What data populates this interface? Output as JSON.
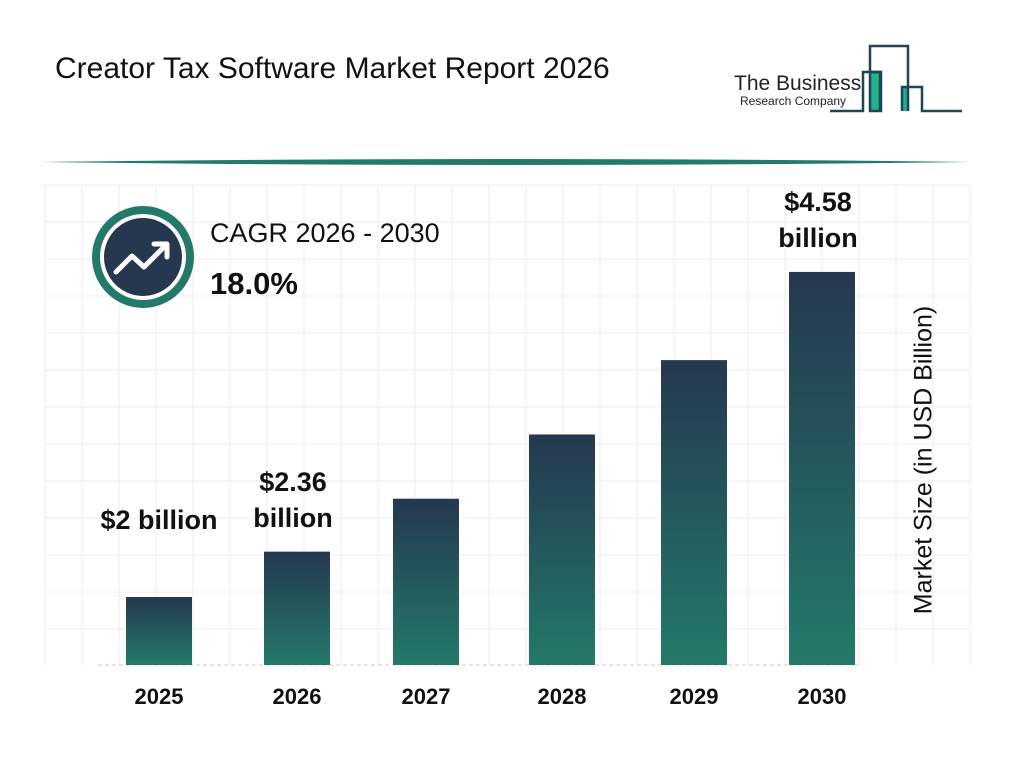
{
  "header": {
    "title": "Creator Tax Software Market Report 2026"
  },
  "logo": {
    "line1": "The Business",
    "line2": "Research Company"
  },
  "cagr": {
    "label": "CAGR 2026 - 2030",
    "value": "18.0%",
    "icon": "trending-up-icon"
  },
  "colors": {
    "bar_top": "#253850",
    "bar_bottom": "#237a6a",
    "accent": "#237a6a",
    "dark": "#253850"
  },
  "chart_data": {
    "type": "bar",
    "categories": [
      "2025",
      "2026",
      "2027",
      "2028",
      "2029",
      "2030"
    ],
    "values": [
      2.0,
      2.36,
      2.78,
      3.29,
      3.88,
      4.58
    ],
    "data_labels": [
      "$2 billion",
      "$2.36 billion",
      "",
      "",
      "",
      "$4.58 billion"
    ],
    "ylabel": "Market Size (in USD Billion)",
    "grid": true
  }
}
